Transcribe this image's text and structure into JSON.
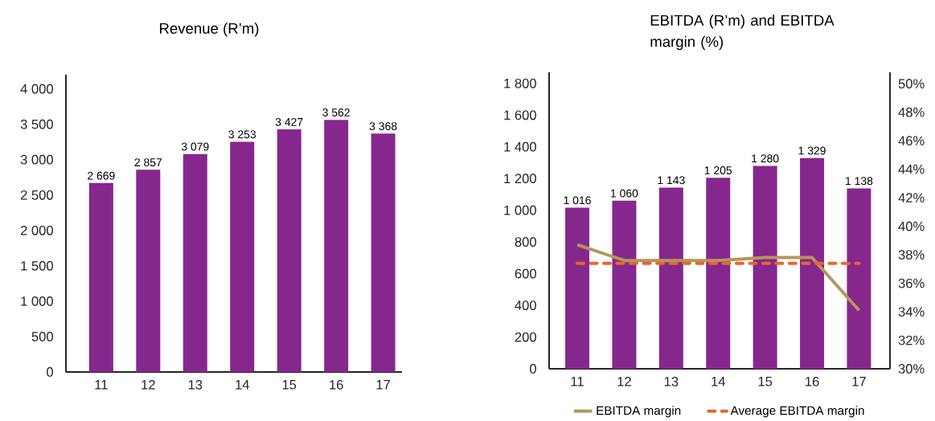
{
  "chart_data": [
    {
      "type": "bar",
      "title": "Revenue (R’m)",
      "categories": [
        "11",
        "12",
        "13",
        "14",
        "15",
        "16",
        "17"
      ],
      "values": [
        2669,
        2857,
        3079,
        3253,
        3427,
        3562,
        3368
      ],
      "color": "#86278e",
      "value_labels": [
        "2 669",
        "2 857",
        "3 079",
        "3 253",
        "3 427",
        "3 562",
        "3 368"
      ],
      "ylim": [
        0,
        4200
      ],
      "yticks": [
        0,
        500,
        {
          "value": 1000,
          "label": "1 000"
        },
        {
          "value": 1500,
          "label": "1 500"
        },
        {
          "value": 2000,
          "label": "2 000"
        },
        {
          "value": 2500,
          "label": "2 500"
        },
        {
          "value": 3000,
          "label": "3 000"
        },
        {
          "value": 3500,
          "label": "3 500"
        },
        {
          "value": 4000,
          "label": "4 000"
        }
      ]
    },
    {
      "type": "bar",
      "title": "EBITDA (R’m) and EBITDA margin (%)",
      "categories": [
        "11",
        "12",
        "13",
        "14",
        "15",
        "16",
        "17"
      ],
      "series": [
        {
          "type": "bar",
          "color": "#86278e",
          "values": [
            1016,
            1060,
            1143,
            1205,
            1280,
            1329,
            1138
          ],
          "value_labels": [
            "1 016",
            "1 060",
            "1 143",
            "1 205",
            "1 280",
            "1 329",
            "1 138"
          ]
        },
        {
          "type": "line",
          "name": "EBITDA margin",
          "axis": "y2",
          "color": "#b5965a",
          "values": [
            38.7,
            37.6,
            37.6,
            37.6,
            37.8,
            37.8,
            34.1
          ]
        },
        {
          "type": "line",
          "name": "Average EBITDA margin",
          "axis": "y2",
          "color": "#e8662a",
          "line_style": "dashed",
          "values": [
            37.4,
            37.4,
            37.4,
            37.4,
            37.4,
            37.4,
            37.4
          ]
        }
      ],
      "ylim": [
        0,
        1870
      ],
      "yticks": [
        0,
        200,
        400,
        600,
        800,
        {
          "value": 1000,
          "label": "1 000"
        },
        {
          "value": 1200,
          "label": "1 200"
        },
        {
          "value": 1400,
          "label": "1 400"
        },
        {
          "value": 1600,
          "label": "1 600"
        },
        {
          "value": 1800,
          "label": "1 800"
        }
      ],
      "y2lim": [
        30,
        50.8
      ],
      "y2ticks": [
        {
          "value": 30,
          "label": "30%"
        },
        {
          "value": 32,
          "label": "32%"
        },
        {
          "value": 34,
          "label": "34%"
        },
        {
          "value": 36,
          "label": "36%"
        },
        {
          "value": 38,
          "label": "38%"
        },
        {
          "value": 40,
          "label": "40%"
        },
        {
          "value": 42,
          "label": "42%"
        },
        {
          "value": 44,
          "label": "44%"
        },
        {
          "value": 46,
          "label": "46%"
        },
        {
          "value": 48,
          "label": "48%"
        },
        {
          "value": 50,
          "label": "50%"
        }
      ],
      "legend": "bottom"
    }
  ]
}
